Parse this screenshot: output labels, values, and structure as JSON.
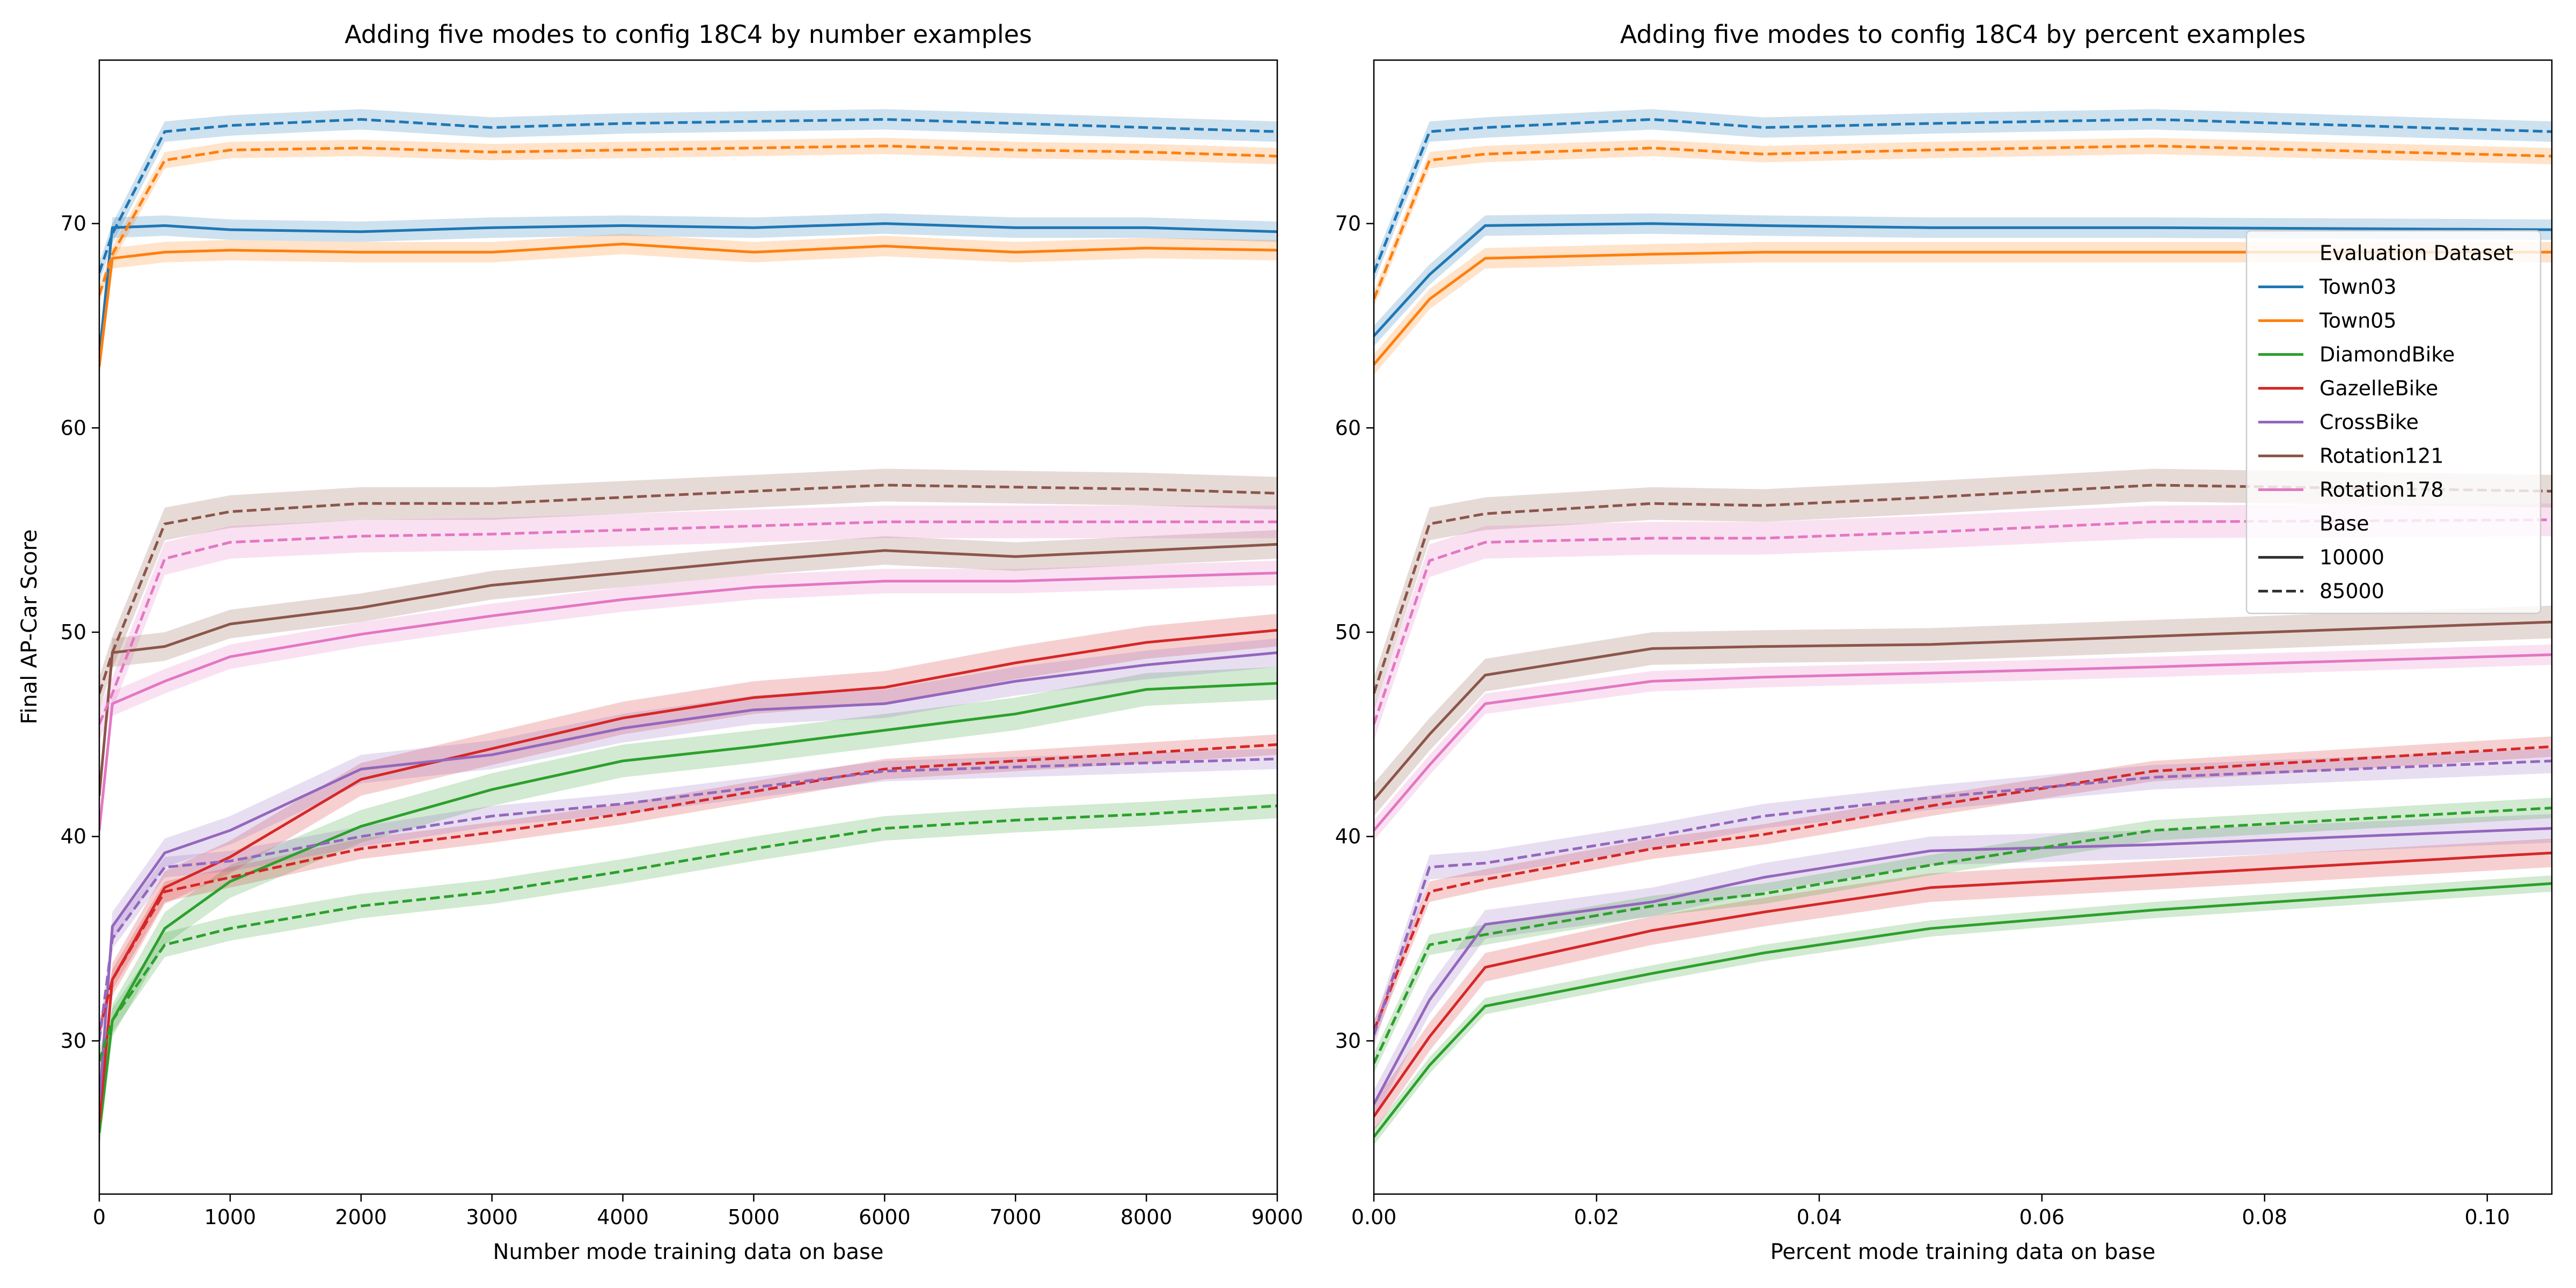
{
  "figure": {
    "ylabel": "Final AP-Car Score"
  },
  "legend": {
    "title": "Evaluation Dataset",
    "entries": [
      "Town03",
      "Town05",
      "DiamondBike",
      "GazelleBike",
      "CrossBike",
      "Rotation121",
      "Rotation178"
    ],
    "style_title": "Base",
    "styles": [
      {
        "label": "10000",
        "dash": "solid"
      },
      {
        "label": "85000",
        "dash": "dashed"
      }
    ]
  },
  "colors": {
    "Town03": "#1f77b4",
    "Town05": "#ff7f0e",
    "DiamondBike": "#2ca02c",
    "GazelleBike": "#d62728",
    "CrossBike": "#9467bd",
    "Rotation121": "#8c564b",
    "Rotation178": "#e377c2"
  },
  "chart_data": [
    {
      "type": "line",
      "title": "Adding five modes to config 18C4 by number examples",
      "xlabel": "Number mode training data on base",
      "ylabel": "Final AP-Car Score",
      "xlim": [
        0,
        9000
      ],
      "ylim": [
        22.5,
        78
      ],
      "xticks": [
        0,
        1000,
        2000,
        3000,
        4000,
        5000,
        6000,
        7000,
        8000,
        9000
      ],
      "xtick_labels": [
        "0",
        "1000",
        "2000",
        "3000",
        "4000",
        "5000",
        "6000",
        "7000",
        "8000",
        "9000"
      ],
      "yticks": [
        30,
        40,
        50,
        60,
        70
      ],
      "ytick_labels": [
        "30",
        "40",
        "50",
        "60",
        "70"
      ],
      "x": [
        0,
        100,
        500,
        1000,
        2000,
        3000,
        4000,
        5000,
        6000,
        7000,
        8000,
        9000
      ],
      "series": [
        {
          "name": "Town03",
          "base": "10000",
          "values": [
            63.5,
            69.8,
            69.9,
            69.7,
            69.6,
            69.8,
            69.9,
            69.8,
            70.0,
            69.8,
            69.8,
            69.6
          ],
          "band": 0.5
        },
        {
          "name": "Town05",
          "base": "10000",
          "values": [
            63.0,
            68.3,
            68.6,
            68.7,
            68.6,
            68.6,
            69.0,
            68.6,
            68.9,
            68.6,
            68.8,
            68.7
          ],
          "band": 0.5
        },
        {
          "name": "DiamondBike",
          "base": "10000",
          "values": [
            25.5,
            31.0,
            35.5,
            37.8,
            40.5,
            42.3,
            43.7,
            44.4,
            45.2,
            46.0,
            47.2,
            47.5
          ],
          "band": 0.8
        },
        {
          "name": "GazelleBike",
          "base": "10000",
          "values": [
            26.0,
            33.0,
            37.5,
            39.0,
            42.8,
            44.3,
            45.8,
            46.8,
            47.3,
            48.5,
            49.5,
            50.1
          ],
          "band": 0.8
        },
        {
          "name": "CrossBike",
          "base": "10000",
          "values": [
            27.0,
            35.6,
            39.2,
            40.3,
            43.3,
            44.0,
            45.3,
            46.2,
            46.5,
            47.6,
            48.4,
            49.0
          ],
          "band": 0.7
        },
        {
          "name": "Rotation121",
          "base": "10000",
          "values": [
            42.0,
            49.0,
            49.3,
            50.4,
            51.2,
            52.3,
            52.9,
            53.5,
            54.0,
            53.7,
            54.0,
            54.3
          ],
          "band": 0.7
        },
        {
          "name": "Rotation178",
          "base": "10000",
          "values": [
            40.3,
            46.5,
            47.6,
            48.8,
            49.9,
            50.8,
            51.6,
            52.2,
            52.5,
            52.5,
            52.7,
            52.9
          ],
          "band": 0.6
        },
        {
          "name": "Town03",
          "base": "85000",
          "values": [
            67.6,
            69.5,
            74.5,
            74.8,
            75.1,
            74.7,
            74.9,
            75.0,
            75.1,
            74.9,
            74.7,
            74.5
          ],
          "band": 0.5
        },
        {
          "name": "Town05",
          "base": "85000",
          "values": [
            66.5,
            68.5,
            73.1,
            73.6,
            73.7,
            73.5,
            73.6,
            73.7,
            73.8,
            73.6,
            73.5,
            73.3
          ],
          "band": 0.4
        },
        {
          "name": "DiamondBike",
          "base": "85000",
          "values": [
            29.0,
            31.0,
            34.7,
            35.5,
            36.6,
            37.3,
            38.3,
            39.4,
            40.4,
            40.8,
            41.1,
            41.5
          ],
          "band": 0.6
        },
        {
          "name": "GazelleBike",
          "base": "85000",
          "values": [
            30.5,
            33.0,
            37.3,
            38.0,
            39.4,
            40.2,
            41.1,
            42.2,
            43.3,
            43.7,
            44.1,
            44.5
          ],
          "band": 0.5
        },
        {
          "name": "CrossBike",
          "base": "85000",
          "values": [
            30.0,
            35.0,
            38.5,
            38.8,
            40.0,
            41.0,
            41.6,
            42.4,
            43.2,
            43.4,
            43.6,
            43.8
          ],
          "band": 0.5
        },
        {
          "name": "Rotation121",
          "base": "85000",
          "values": [
            47.0,
            49.0,
            55.3,
            55.9,
            56.3,
            56.3,
            56.6,
            56.9,
            57.2,
            57.1,
            57.0,
            56.8
          ],
          "band": 0.8
        },
        {
          "name": "Rotation178",
          "base": "85000",
          "values": [
            45.5,
            47.0,
            53.6,
            54.4,
            54.7,
            54.8,
            55.0,
            55.2,
            55.4,
            55.4,
            55.4,
            55.4
          ],
          "band": 0.8
        }
      ]
    },
    {
      "type": "line",
      "title": "Adding five modes to config 18C4 by percent examples",
      "xlabel": "Percent mode training data on base",
      "ylabel": "",
      "xlim": [
        0,
        0.1058
      ],
      "ylim": [
        22.5,
        78
      ],
      "xticks": [
        0,
        0.02,
        0.04,
        0.06,
        0.08,
        0.1
      ],
      "xtick_labels": [
        "0.00",
        "0.02",
        "0.04",
        "0.06",
        "0.08",
        "0.10"
      ],
      "yticks": [
        30,
        40,
        50,
        60,
        70
      ],
      "ytick_labels": [
        "30",
        "40",
        "50",
        "60",
        "70"
      ],
      "x": [
        0,
        0.005,
        0.01,
        0.025,
        0.035,
        0.05,
        0.07,
        0.1058
      ],
      "series": [
        {
          "name": "Town03",
          "base": "10000",
          "values": [
            64.5,
            67.5,
            69.9,
            70.0,
            69.9,
            69.8,
            69.8,
            69.7
          ],
          "band": 0.5
        },
        {
          "name": "Town05",
          "base": "10000",
          "values": [
            63.1,
            66.3,
            68.3,
            68.5,
            68.6,
            68.6,
            68.6,
            68.6
          ],
          "band": 0.5
        },
        {
          "name": "DiamondBike",
          "base": "10000",
          "values": [
            25.3,
            28.8,
            31.7,
            33.3,
            34.3,
            35.5,
            36.4,
            37.7
          ],
          "band": 0.4
        },
        {
          "name": "GazelleBike",
          "base": "10000",
          "values": [
            26.3,
            30.2,
            33.6,
            35.4,
            36.3,
            37.5,
            38.1,
            39.2
          ],
          "band": 0.7
        },
        {
          "name": "CrossBike",
          "base": "10000",
          "values": [
            26.9,
            32.0,
            35.7,
            36.8,
            38.0,
            39.3,
            39.6,
            40.4
          ],
          "band": 0.7
        },
        {
          "name": "Rotation121",
          "base": "10000",
          "values": [
            41.8,
            45.0,
            47.9,
            49.2,
            49.3,
            49.4,
            49.8,
            50.5
          ],
          "band": 0.8
        },
        {
          "name": "Rotation178",
          "base": "10000",
          "values": [
            40.3,
            43.5,
            46.5,
            47.6,
            47.8,
            48.0,
            48.3,
            48.9
          ],
          "band": 0.5
        },
        {
          "name": "Town03",
          "base": "85000",
          "values": [
            67.6,
            74.5,
            74.7,
            75.1,
            74.7,
            74.9,
            75.1,
            74.5
          ],
          "band": 0.5
        },
        {
          "name": "Town05",
          "base": "85000",
          "values": [
            66.3,
            73.1,
            73.4,
            73.7,
            73.4,
            73.6,
            73.8,
            73.3
          ],
          "band": 0.4
        },
        {
          "name": "DiamondBike",
          "base": "85000",
          "values": [
            28.9,
            34.7,
            35.2,
            36.6,
            37.2,
            38.6,
            40.3,
            41.4
          ],
          "band": 0.5
        },
        {
          "name": "GazelleBike",
          "base": "85000",
          "values": [
            30.5,
            37.3,
            37.9,
            39.4,
            40.1,
            41.5,
            43.2,
            44.4
          ],
          "band": 0.5
        },
        {
          "name": "CrossBike",
          "base": "85000",
          "values": [
            30.3,
            38.5,
            38.7,
            40.0,
            41.0,
            41.9,
            42.9,
            43.7
          ],
          "band": 0.6
        },
        {
          "name": "Rotation121",
          "base": "85000",
          "values": [
            47.0,
            55.3,
            55.8,
            56.3,
            56.2,
            56.6,
            57.2,
            56.9
          ],
          "band": 0.8
        },
        {
          "name": "Rotation178",
          "base": "85000",
          "values": [
            45.5,
            53.5,
            54.4,
            54.6,
            54.6,
            54.9,
            55.4,
            55.5
          ],
          "band": 0.8
        }
      ]
    }
  ]
}
